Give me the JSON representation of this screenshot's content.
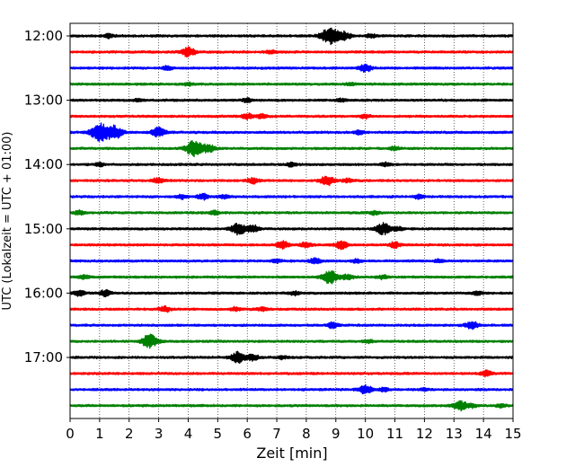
{
  "chart_data": {
    "type": "line",
    "subtype": "helicorder",
    "xlabel": "Zeit  [min]",
    "ylabel": "UTC (Lokalzeit = UTC + 01:00)",
    "xlim": [
      0,
      15
    ],
    "x_ticks": [
      0,
      1,
      2,
      3,
      4,
      5,
      6,
      7,
      8,
      9,
      10,
      11,
      12,
      13,
      14,
      15
    ],
    "grid": "vertical, dotted",
    "y_tick_labels": [
      "12:00",
      "13:00",
      "14:00",
      "15:00",
      "16:00",
      "17:00"
    ],
    "trace_interval_min": 15,
    "colors": [
      "#000000",
      "#ff0000",
      "#0000ff",
      "#008000"
    ],
    "traces": [
      {
        "start": "12:00",
        "events": [
          [
            1.3,
            2
          ],
          [
            8.8,
            9
          ],
          [
            9.3,
            4
          ],
          [
            10.2,
            2
          ]
        ]
      },
      {
        "start": "12:15",
        "events": [
          [
            4.0,
            5
          ],
          [
            6.8,
            2
          ]
        ]
      },
      {
        "start": "12:30",
        "events": [
          [
            3.3,
            2
          ],
          [
            10.0,
            4
          ]
        ]
      },
      {
        "start": "12:45",
        "events": [
          [
            4.0,
            1.5
          ],
          [
            9.5,
            1.5
          ]
        ]
      },
      {
        "start": "13:00",
        "events": [
          [
            2.3,
            1.5
          ],
          [
            6.0,
            2
          ],
          [
            9.2,
            1.5
          ]
        ]
      },
      {
        "start": "13:15",
        "events": [
          [
            6.0,
            3
          ],
          [
            6.5,
            2
          ],
          [
            10.0,
            2
          ]
        ]
      },
      {
        "start": "13:30",
        "events": [
          [
            1.0,
            9
          ],
          [
            1.5,
            7
          ],
          [
            3.0,
            5
          ],
          [
            9.8,
            2
          ]
        ]
      },
      {
        "start": "13:45",
        "events": [
          [
            4.2,
            8
          ],
          [
            4.7,
            4
          ],
          [
            11.0,
            2
          ]
        ]
      },
      {
        "start": "14:00",
        "events": [
          [
            1.0,
            2
          ],
          [
            7.5,
            2
          ],
          [
            10.7,
            2
          ]
        ]
      },
      {
        "start": "14:15",
        "events": [
          [
            3.0,
            3
          ],
          [
            6.2,
            3
          ],
          [
            8.7,
            5
          ],
          [
            9.4,
            2
          ]
        ]
      },
      {
        "start": "14:30",
        "events": [
          [
            3.8,
            2
          ],
          [
            4.5,
            3
          ],
          [
            5.2,
            2
          ],
          [
            11.8,
            2
          ]
        ]
      },
      {
        "start": "14:45",
        "events": [
          [
            0.3,
            2
          ],
          [
            4.9,
            2
          ],
          [
            10.3,
            2
          ]
        ]
      },
      {
        "start": "15:00",
        "events": [
          [
            5.7,
            6
          ],
          [
            6.2,
            4
          ],
          [
            10.6,
            6
          ],
          [
            11.1,
            2
          ]
        ]
      },
      {
        "start": "15:15",
        "events": [
          [
            7.2,
            4
          ],
          [
            8.0,
            3
          ],
          [
            9.2,
            4
          ],
          [
            11.0,
            3
          ]
        ]
      },
      {
        "start": "15:30",
        "events": [
          [
            7.0,
            2
          ],
          [
            8.3,
            3
          ],
          [
            9.7,
            2
          ],
          [
            12.5,
            1.5
          ]
        ]
      },
      {
        "start": "15:45",
        "events": [
          [
            0.5,
            2
          ],
          [
            8.8,
            7
          ],
          [
            9.4,
            3
          ],
          [
            10.6,
            2
          ]
        ]
      },
      {
        "start": "16:00",
        "events": [
          [
            0.3,
            3
          ],
          [
            1.2,
            3
          ],
          [
            7.6,
            2
          ],
          [
            13.8,
            2
          ]
        ]
      },
      {
        "start": "16:15",
        "events": [
          [
            3.2,
            3
          ],
          [
            5.6,
            2
          ],
          [
            6.5,
            2
          ]
        ]
      },
      {
        "start": "16:30",
        "events": [
          [
            8.9,
            3
          ],
          [
            13.6,
            4
          ]
        ]
      },
      {
        "start": "16:45",
        "events": [
          [
            2.7,
            7
          ],
          [
            10.1,
            1.5
          ]
        ]
      },
      {
        "start": "17:00",
        "events": [
          [
            5.7,
            6
          ],
          [
            6.2,
            3
          ],
          [
            7.2,
            1.5
          ]
        ]
      },
      {
        "start": "17:15",
        "events": [
          [
            14.1,
            3
          ]
        ]
      },
      {
        "start": "17:30",
        "events": [
          [
            10.0,
            5
          ],
          [
            10.6,
            2
          ],
          [
            12.0,
            1.5
          ]
        ]
      },
      {
        "start": "17:45",
        "events": [
          [
            13.2,
            5
          ],
          [
            13.6,
            2
          ],
          [
            14.6,
            2
          ]
        ]
      }
    ]
  }
}
